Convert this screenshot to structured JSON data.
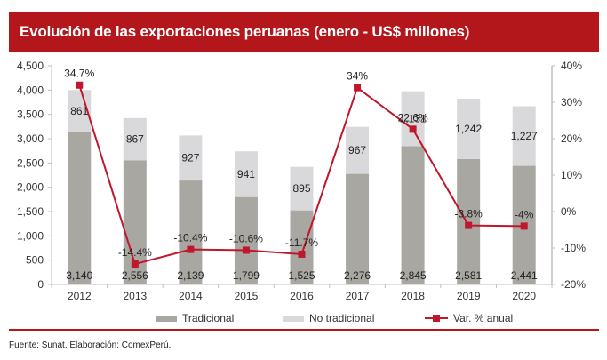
{
  "header": {
    "title": "Evolución de las exportaciones peruanas (enero - US$ millones)"
  },
  "colors": {
    "header_bg": "#B3171C",
    "tradicional": "#A9A7A2",
    "no_tradicional": "#D9D9DC",
    "line": "#C0172C"
  },
  "legend": {
    "tradicional": "Tradicional",
    "no_tradicional": "No tradicional",
    "var": "Var. % anual"
  },
  "footer": {
    "source": "Fuente: Sunat. Elaboración: ComexPerú."
  },
  "chart_data": {
    "type": "bar",
    "stacked": true,
    "title": "Evolución de las exportaciones peruanas (enero - US$ millones)",
    "categories": [
      "2012",
      "2013",
      "2014",
      "2015",
      "2016",
      "2017",
      "2018",
      "2019",
      "2020"
    ],
    "series": [
      {
        "name": "Tradicional",
        "axis": "left",
        "type": "bar",
        "values": [
          3140,
          2556,
          2139,
          1799,
          1525,
          2276,
          2845,
          2581,
          2441
        ],
        "labels": [
          "3,140",
          "2,556",
          "2,139",
          "1,799",
          "1,525",
          "2,276",
          "2,845",
          "2,581",
          "2,441"
        ]
      },
      {
        "name": "No tradicional",
        "axis": "left",
        "type": "bar",
        "values": [
          861,
          867,
          927,
          941,
          895,
          967,
          1131,
          1242,
          1227
        ],
        "labels": [
          "861",
          "867",
          "927",
          "941",
          "895",
          "967",
          "1,131",
          "1,242",
          "1,227"
        ]
      },
      {
        "name": "Var. % anual",
        "axis": "right",
        "type": "line",
        "values": [
          34.7,
          -14.4,
          -10.4,
          -10.6,
          -11.7,
          34,
          22.6,
          -3.8,
          -4
        ],
        "labels": [
          "34.7%",
          "-14.4%",
          "-10.4%",
          "-10.6%",
          "-11.7%",
          "34%",
          "22.6%",
          "-3.8%",
          "-4%"
        ]
      }
    ],
    "y_left": {
      "min": 0,
      "max": 4500,
      "step": 500,
      "ticks": [
        "0",
        "500",
        "1,000",
        "1,500",
        "2,000",
        "2,500",
        "3,000",
        "3,500",
        "4,000",
        "4,500"
      ]
    },
    "y_right": {
      "min": -20,
      "max": 40,
      "step": 10,
      "ticks": [
        "-20%",
        "-10%",
        "0%",
        "10%",
        "20%",
        "30%",
        "40%"
      ]
    },
    "grid": false,
    "legend_position": "bottom"
  }
}
